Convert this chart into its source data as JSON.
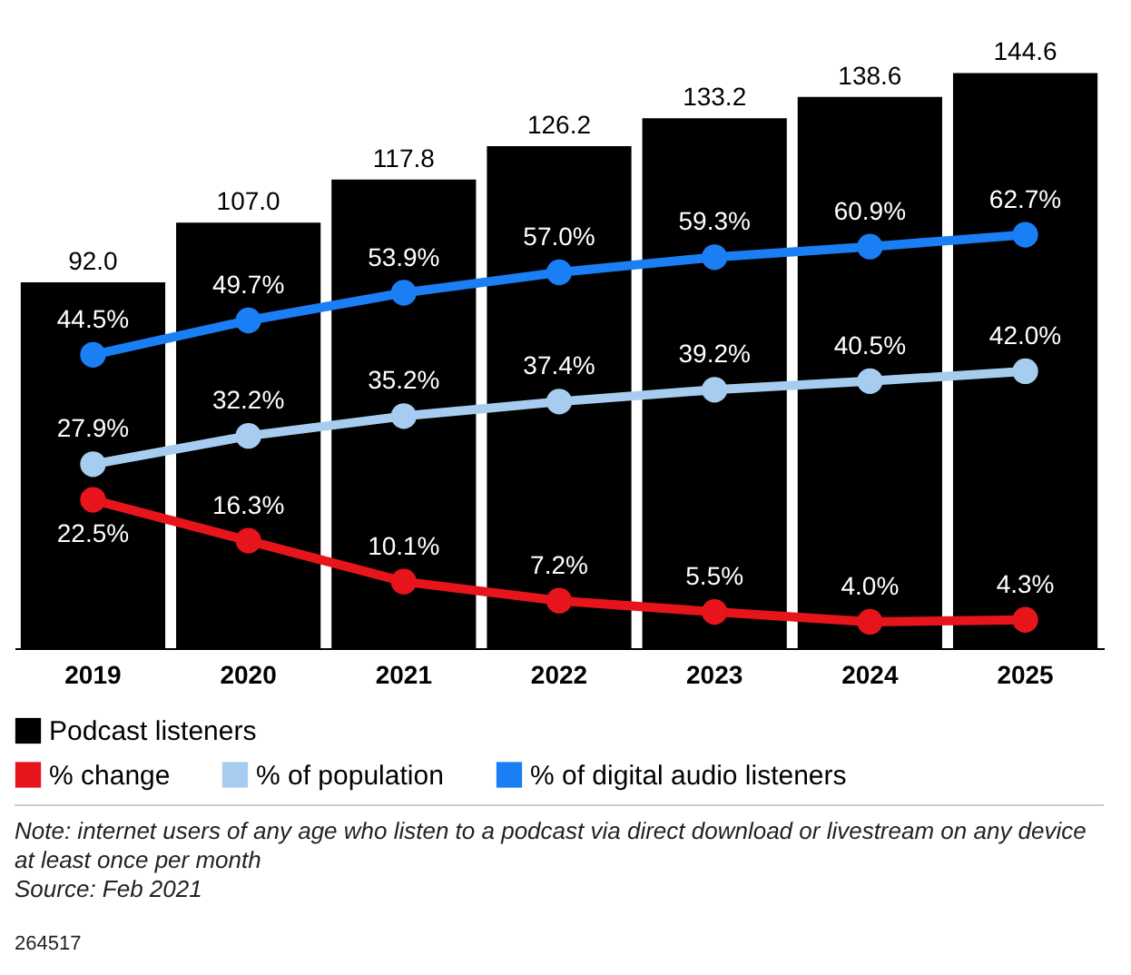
{
  "chart_data": {
    "type": "bar",
    "categories": [
      "2019",
      "2020",
      "2021",
      "2022",
      "2023",
      "2024",
      "2025"
    ],
    "series": [
      {
        "name": "Podcast listeners",
        "color": "#000000",
        "values": [
          92.0,
          107.0,
          117.8,
          126.2,
          133.2,
          138.6,
          144.6
        ],
        "value_labels": [
          "92.0",
          "107.0",
          "117.8",
          "126.2",
          "133.2",
          "138.6",
          "144.6"
        ]
      },
      {
        "name": "% change",
        "type": "line",
        "axis": "y2",
        "color": "#e8141b",
        "values": [
          22.5,
          16.3,
          10.1,
          7.2,
          5.5,
          4.0,
          4.3
        ],
        "value_labels": [
          "22.5%",
          "16.3%",
          "10.1%",
          "7.2%",
          "5.5%",
          "4.0%",
          "4.3%"
        ]
      },
      {
        "name": "% of population",
        "type": "line",
        "axis": "y2",
        "color": "#a6cdf0",
        "values": [
          27.9,
          32.2,
          35.2,
          37.4,
          39.2,
          40.5,
          42.0
        ],
        "value_labels": [
          "27.9%",
          "32.2%",
          "35.2%",
          "37.4%",
          "39.2%",
          "40.5%",
          "42.0%"
        ]
      },
      {
        "name": "% of digital audio listeners",
        "type": "line",
        "axis": "y2",
        "color": "#1a7ef5",
        "values": [
          44.5,
          49.7,
          53.9,
          57.0,
          59.3,
          60.9,
          62.7
        ],
        "value_labels": [
          "44.5%",
          "49.7%",
          "53.9%",
          "57.0%",
          "59.3%",
          "60.9%",
          "62.7%"
        ]
      }
    ],
    "tick_labels": "x",
    "grid": false,
    "legend": "bottom",
    "marker": "circle",
    "line_style": "solid",
    "annotations": [
      "Note: internet users of any age who listen to a podcast via direct download or livestream on any device at least once per month",
      "Source: Feb 2021",
      "264517"
    ]
  }
}
